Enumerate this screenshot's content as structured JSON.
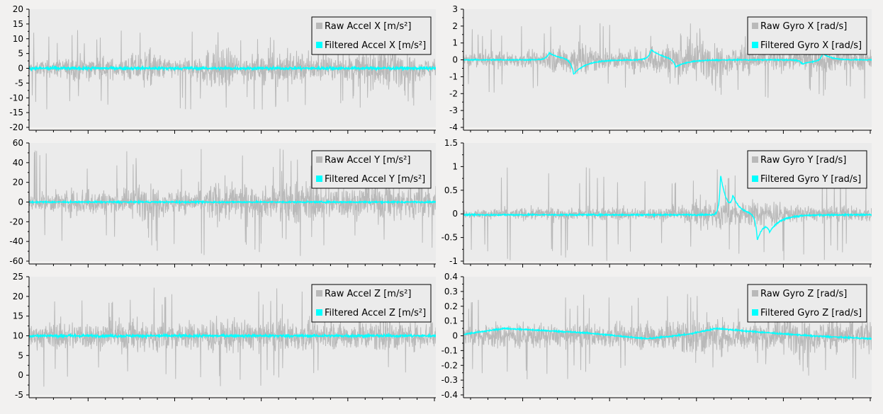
{
  "window": {
    "background": "#f2f1f0",
    "plot_background": "#ebebeb"
  },
  "colors": {
    "raw": "#b9b9b9",
    "filtered": "#00ffff",
    "axis": "#000000"
  },
  "chart_data": [
    {
      "id": "accel-x",
      "type": "line",
      "title": "",
      "xlabel": "",
      "ylabel": "",
      "ylim": [
        -20,
        20
      ],
      "yticks": [
        "-20",
        "-15",
        "-10",
        "-5",
        "0",
        "5",
        "10",
        "15",
        "20"
      ],
      "ytick_values": [
        -20,
        -15,
        -10,
        -5,
        0,
        5,
        10,
        15,
        20
      ],
      "grid": false,
      "legend": "top-right",
      "series": [
        {
          "name": "Raw Accel X [m/s²]",
          "role": "raw",
          "baseline": 0,
          "amplitude_envelope": [
            4,
            5,
            6,
            8,
            7,
            6,
            9,
            12,
            7,
            5,
            10,
            14,
            11,
            8,
            9,
            12,
            10,
            8,
            6,
            9,
            11,
            13,
            10,
            7,
            5
          ],
          "spike_max": 14
        },
        {
          "name": "Filtered Accel X [m/s²]",
          "role": "filtered",
          "baseline": 0,
          "noise": 0.9
        }
      ]
    },
    {
      "id": "gyro-x",
      "type": "line",
      "title": "",
      "xlabel": "",
      "ylabel": "",
      "ylim": [
        -4,
        3
      ],
      "yticks": [
        "-4",
        "-3",
        "-2",
        "-1",
        "0",
        "1",
        "2",
        "3"
      ],
      "ytick_values": [
        -4,
        -3,
        -2,
        -1,
        0,
        1,
        2,
        3
      ],
      "grid": false,
      "legend": "top-right",
      "series": [
        {
          "name": "Raw Gyro X [rad/s]",
          "role": "raw",
          "baseline": 0,
          "amplitude_envelope": [
            0.6,
            0.8,
            0.9,
            0.8,
            0.9,
            1.2,
            1.6,
            2.2,
            1.1,
            1.0,
            1.3,
            1.6,
            1.8,
            2.4,
            2.0,
            1.6,
            1.4,
            1.5,
            1.3,
            1.2,
            1.1,
            1.4,
            1.3,
            1.2,
            1.1
          ],
          "spike_max": 2.3
        },
        {
          "name": "Filtered Gyro X [rad/s]",
          "role": "filtered",
          "baseline": 0,
          "noise": 0.05,
          "events": [
            [
              0.21,
              0.4,
              0.03
            ],
            [
              0.27,
              -0.9,
              0.03
            ],
            [
              0.46,
              0.6,
              0.03
            ],
            [
              0.52,
              -0.5,
              0.03
            ],
            [
              0.83,
              -0.25,
              0.03
            ],
            [
              0.88,
              0.45,
              0.02
            ]
          ]
        }
      ]
    },
    {
      "id": "accel-y",
      "type": "line",
      "title": "",
      "xlabel": "",
      "ylabel": "",
      "ylim": [
        -60,
        60
      ],
      "yticks": [
        "-60",
        "-40",
        "-20",
        "0",
        "20",
        "40",
        "60"
      ],
      "ytick_values": [
        -60,
        -40,
        -20,
        0,
        20,
        40,
        60
      ],
      "grid": false,
      "legend": "top-right",
      "series": [
        {
          "name": "Raw Accel Y [m/s²]",
          "role": "raw",
          "baseline": 0,
          "amplitude_envelope": [
            12,
            18,
            22,
            28,
            25,
            20,
            28,
            34,
            24,
            20,
            26,
            38,
            36,
            30,
            28,
            44,
            40,
            36,
            32,
            30,
            34,
            38,
            36,
            30,
            32
          ],
          "spike_max": 55
        },
        {
          "name": "Filtered Accel Y [m/s²]",
          "role": "filtered",
          "baseline": 0,
          "noise": 1.2
        }
      ]
    },
    {
      "id": "gyro-y",
      "type": "line",
      "title": "",
      "xlabel": "",
      "ylabel": "",
      "ylim": [
        -1,
        1.5
      ],
      "yticks": [
        "-1",
        "-0.5",
        "0",
        "0.5",
        "1",
        "1.5"
      ],
      "ytick_values": [
        -1,
        -0.5,
        0,
        0.5,
        1,
        1.5
      ],
      "grid": false,
      "legend": "top-right",
      "series": [
        {
          "name": "Raw Gyro Y [rad/s]",
          "role": "raw",
          "baseline": 0,
          "amplitude_envelope": [
            0.15,
            0.18,
            0.2,
            0.22,
            0.25,
            0.24,
            0.22,
            0.22,
            0.25,
            0.26,
            0.25,
            0.24,
            0.28,
            0.3,
            0.7,
            0.6,
            0.45,
            0.5,
            0.6,
            0.35,
            0.3,
            0.28,
            0.3,
            0.32,
            0.28
          ],
          "spike_max": 1.0
        },
        {
          "name": "Filtered Gyro Y [rad/s]",
          "role": "filtered",
          "baseline": -0.02,
          "noise": 0.025,
          "events": [
            [
              0.63,
              0.85,
              0.015
            ],
            [
              0.66,
              0.3,
              0.02
            ],
            [
              0.72,
              -0.55,
              0.02
            ],
            [
              0.75,
              -0.25,
              0.03
            ]
          ]
        }
      ]
    },
    {
      "id": "accel-z",
      "type": "line",
      "title": "",
      "xlabel": "",
      "ylabel": "",
      "ylim": [
        -5,
        25
      ],
      "yticks": [
        "-5",
        "0",
        "5",
        "10",
        "15",
        "20",
        "25"
      ],
      "ytick_values": [
        -5,
        0,
        5,
        10,
        15,
        20,
        25
      ],
      "grid": false,
      "legend": "top-right",
      "series": [
        {
          "name": "Raw Accel Z [m/s²]",
          "role": "raw",
          "baseline": 10,
          "amplitude_envelope": [
            5,
            6,
            7,
            7,
            6,
            7,
            8,
            8,
            7,
            6,
            7,
            9,
            8,
            7,
            6,
            8,
            7,
            7,
            6,
            7,
            7,
            8,
            7,
            6,
            7
          ],
          "spike_max": 13
        },
        {
          "name": "Filtered Accel Z [m/s²]",
          "role": "filtered",
          "baseline": 10,
          "noise": 0.6
        }
      ]
    },
    {
      "id": "gyro-z",
      "type": "line",
      "title": "",
      "xlabel": "",
      "ylabel": "",
      "ylim": [
        -0.4,
        0.4
      ],
      "yticks": [
        "-0.4",
        "-0.3",
        "-0.2",
        "-0.1",
        "0",
        "0.1",
        "0.2",
        "0.3",
        "0.4"
      ],
      "ytick_values": [
        -0.4,
        -0.3,
        -0.2,
        -0.1,
        0,
        0.1,
        0.2,
        0.3,
        0.4
      ],
      "grid": false,
      "legend": "top-right",
      "series": [
        {
          "name": "Raw Gyro Z [rad/s]",
          "role": "raw",
          "baseline": 0,
          "amplitude_envelope": [
            0.12,
            0.14,
            0.16,
            0.18,
            0.16,
            0.14,
            0.13,
            0.14,
            0.15,
            0.14,
            0.16,
            0.18,
            0.2,
            0.24,
            0.26,
            0.22,
            0.2,
            0.18,
            0.2,
            0.22,
            0.2,
            0.18,
            0.2,
            0.2,
            0.18
          ],
          "spike_max": 0.3
        },
        {
          "name": "Filtered Gyro Z [rad/s]",
          "role": "filtered",
          "baseline": 0,
          "noise": 0.008,
          "trend": [
            [
              0,
              0.01
            ],
            [
              0.1,
              0.05
            ],
            [
              0.3,
              0.02
            ],
            [
              0.45,
              -0.02
            ],
            [
              0.55,
              0.01
            ],
            [
              0.62,
              0.05
            ],
            [
              0.7,
              0.03
            ],
            [
              0.85,
              0.0
            ],
            [
              1,
              -0.02
            ]
          ]
        }
      ]
    }
  ]
}
